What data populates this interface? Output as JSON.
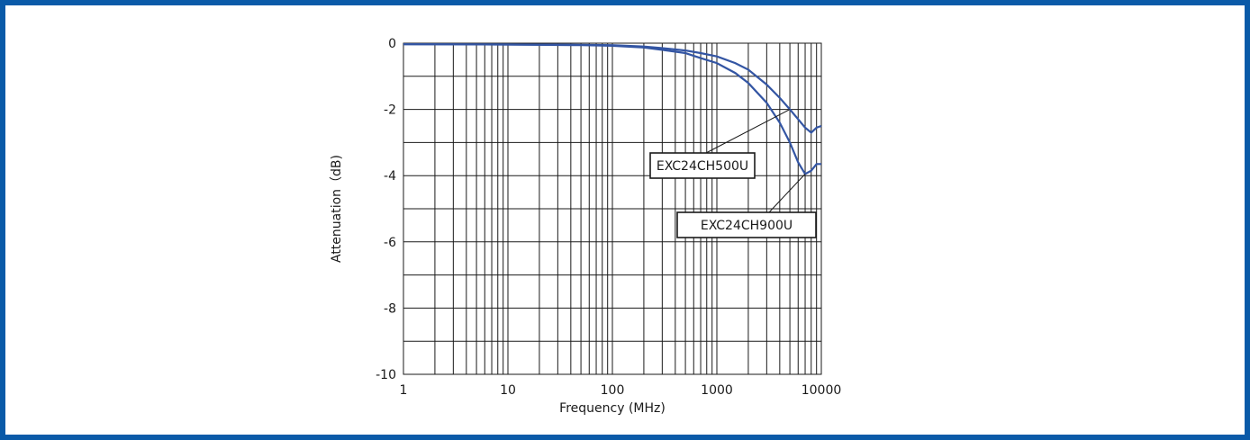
{
  "chart_data": {
    "type": "line",
    "title": "",
    "xlabel": "Frequency (MHz)",
    "ylabel": "Attenuation（dB)",
    "xscale": "log",
    "xlim": [
      1,
      10000
    ],
    "ylim": [
      -10,
      0
    ],
    "grid": true,
    "x_ticks": [
      1,
      10,
      100,
      1000,
      10000
    ],
    "x_tick_labels": [
      "1",
      "10",
      "100",
      "1000",
      "10000"
    ],
    "y_ticks": [
      0,
      -2,
      -4,
      -6,
      -8,
      -10
    ],
    "y_tick_labels": [
      "0",
      "-2",
      "-4",
      "-6",
      "-8",
      "-10"
    ],
    "line_color": "#3355a3",
    "series": [
      {
        "name": "EXC24CH500U",
        "points": [
          [
            1,
            -0.03
          ],
          [
            10,
            -0.04
          ],
          [
            50,
            -0.05
          ],
          [
            100,
            -0.06
          ],
          [
            200,
            -0.1
          ],
          [
            300,
            -0.15
          ],
          [
            500,
            -0.22
          ],
          [
            700,
            -0.3
          ],
          [
            1000,
            -0.4
          ],
          [
            1500,
            -0.6
          ],
          [
            2000,
            -0.8
          ],
          [
            3000,
            -1.25
          ],
          [
            4000,
            -1.65
          ],
          [
            5000,
            -2.0
          ],
          [
            6000,
            -2.3
          ],
          [
            7000,
            -2.55
          ],
          [
            8000,
            -2.7
          ],
          [
            9000,
            -2.55
          ],
          [
            10000,
            -2.5
          ]
        ]
      },
      {
        "name": "EXC24CH900U",
        "points": [
          [
            1,
            -0.03
          ],
          [
            10,
            -0.04
          ],
          [
            50,
            -0.06
          ],
          [
            100,
            -0.08
          ],
          [
            200,
            -0.13
          ],
          [
            300,
            -0.2
          ],
          [
            500,
            -0.3
          ],
          [
            700,
            -0.45
          ],
          [
            1000,
            -0.6
          ],
          [
            1500,
            -0.9
          ],
          [
            2000,
            -1.2
          ],
          [
            3000,
            -1.8
          ],
          [
            4000,
            -2.4
          ],
          [
            5000,
            -3.0
          ],
          [
            6000,
            -3.6
          ],
          [
            7000,
            -3.95
          ],
          [
            8000,
            -3.85
          ],
          [
            9000,
            -3.65
          ],
          [
            10000,
            -3.65
          ]
        ]
      }
    ],
    "annotations": [
      {
        "text": "EXC24CH500U",
        "series": 0
      },
      {
        "text": "EXC24CH900U",
        "series": 1
      }
    ]
  }
}
